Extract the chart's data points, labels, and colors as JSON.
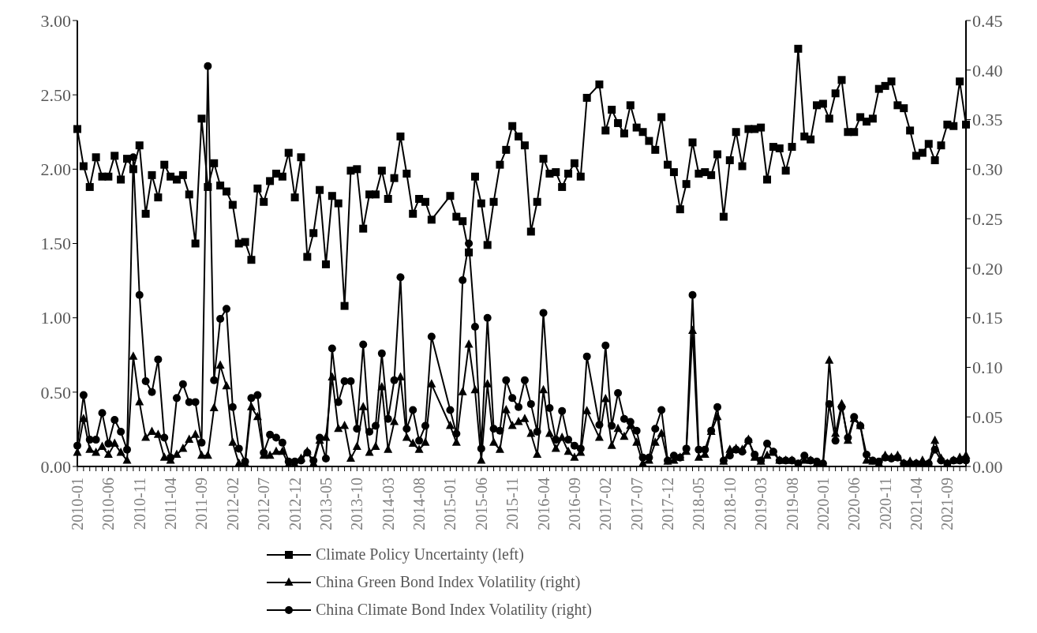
{
  "chart_data": {
    "type": "line",
    "categories": [
      "2010-01",
      null,
      null,
      null,
      null,
      "2010-06",
      null,
      null,
      null,
      null,
      "2010-11",
      null,
      null,
      null,
      null,
      "2011-04",
      null,
      null,
      null,
      null,
      "2011-09",
      null,
      null,
      null,
      null,
      "2012-02",
      null,
      null,
      null,
      null,
      "2012-07",
      null,
      null,
      null,
      null,
      "2012-12",
      null,
      null,
      null,
      null,
      "2013-05",
      null,
      null,
      null,
      null,
      "2013-10",
      null,
      null,
      null,
      null,
      "2014-03",
      null,
      null,
      null,
      null,
      "2014-08",
      null,
      null,
      null,
      null,
      "2015-01",
      null,
      null,
      null,
      null,
      "2015-06",
      null,
      null,
      null,
      null,
      "2015-11",
      null,
      null,
      null,
      null,
      "2016-04",
      null,
      null,
      null,
      null,
      "2016-09",
      null,
      null,
      null,
      null,
      "2017-02",
      null,
      null,
      null,
      null,
      "2017-07",
      null,
      null,
      null,
      null,
      "2017-12",
      null,
      null,
      null,
      null,
      "2018-05",
      null,
      null,
      null,
      null,
      "2018-10",
      null,
      null,
      null,
      null,
      "2019-03",
      null,
      null,
      null,
      null,
      "2019-08",
      null,
      null,
      null,
      null,
      "2020-01",
      null,
      null,
      null,
      null,
      "2020-06",
      null,
      null,
      null,
      null,
      "2020-11",
      null,
      null,
      null,
      null,
      "2021-04",
      null,
      null,
      null,
      null,
      "2021-09",
      null,
      null,
      null
    ],
    "series": [
      {
        "name": "Climate Policy Uncertainty (left)",
        "color": "#000000",
        "marker": "square",
        "values": [
          2.27,
          2.02,
          1.88,
          2.08,
          1.95,
          1.95,
          2.09,
          1.93,
          2.07,
          2.0,
          2.16,
          1.7,
          1.96,
          1.81,
          2.03,
          1.95,
          1.93,
          1.96,
          1.83,
          1.5,
          2.34,
          1.88,
          2.04,
          1.89,
          1.85,
          1.76,
          1.5,
          1.51,
          1.39,
          1.87,
          1.78,
          1.92,
          1.97,
          1.95,
          2.11,
          1.81,
          2.08,
          1.41,
          1.57,
          1.86,
          1.36,
          1.82,
          1.77,
          1.08,
          1.99,
          2.0,
          1.6,
          1.83,
          1.83,
          1.99,
          1.8,
          1.94,
          2.22,
          1.97,
          1.7,
          1.8,
          1.78,
          1.66,
          null,
          null,
          1.82,
          1.68,
          1.65,
          1.44,
          1.95,
          1.77,
          1.49,
          1.78,
          2.03,
          2.13,
          2.29,
          2.22,
          2.16,
          1.58,
          1.78,
          2.07,
          1.97,
          1.98,
          1.88,
          1.97,
          2.04,
          1.95,
          2.48,
          null,
          2.57,
          2.26,
          2.4,
          2.31,
          2.24,
          2.43,
          2.28,
          2.25,
          2.19,
          2.13,
          2.35,
          2.03,
          1.98,
          1.73,
          1.9,
          2.18,
          1.97,
          1.98,
          1.96,
          2.1,
          1.68,
          2.06,
          2.25,
          2.02,
          2.27,
          2.27,
          2.28,
          1.93,
          2.15,
          2.14,
          1.99,
          2.15,
          2.81,
          2.22,
          2.2,
          2.43,
          2.44,
          2.34,
          2.51,
          2.6,
          2.25,
          2.25,
          2.35,
          2.32,
          2.34,
          2.54,
          2.56,
          2.59,
          2.43,
          2.41,
          2.26,
          2.09,
          2.11,
          2.17,
          2.06,
          2.16,
          2.3,
          2.29,
          2.59,
          2.3
        ]
      },
      {
        "name": "China Green Bond Index Volatility (right)",
        "color": "#000000",
        "marker": "triangle",
        "axis": "y2",
        "values": [
          0.014,
          0.048,
          0.017,
          0.014,
          0.02,
          0.012,
          0.023,
          0.014,
          0.006,
          0.111,
          0.065,
          0.029,
          0.035,
          0.032,
          0.009,
          0.006,
          0.012,
          0.018,
          0.027,
          0.032,
          0.011,
          0.011,
          0.059,
          0.102,
          0.081,
          0.024,
          0.003,
          0.003,
          0.06,
          0.05,
          0.011,
          0.011,
          0.015,
          0.015,
          0.002,
          0.002,
          0.008,
          0.015,
          0.003,
          0.026,
          0.029,
          0.09,
          0.038,
          0.041,
          0.008,
          0.02,
          0.06,
          0.014,
          0.02,
          0.08,
          0.017,
          0.045,
          0.09,
          0.029,
          0.023,
          0.017,
          0.024,
          0.083,
          null,
          null,
          0.041,
          0.024,
          0.075,
          0.123,
          0.077,
          0.006,
          0.083,
          0.024,
          0.017,
          0.057,
          0.041,
          0.045,
          0.048,
          0.033,
          0.012,
          0.077,
          0.033,
          0.018,
          0.029,
          0.015,
          0.009,
          0.014,
          0.056,
          null,
          0.029,
          0.068,
          0.021,
          0.038,
          0.03,
          0.041,
          0.024,
          0.003,
          0.006,
          0.024,
          0.033,
          0.005,
          0.006,
          0.009,
          0.015,
          0.137,
          0.009,
          0.012,
          0.035,
          0.05,
          0.005,
          0.017,
          0.018,
          0.017,
          0.027,
          0.009,
          0.005,
          0.011,
          0.014,
          0.006,
          0.006,
          0.006,
          0.002,
          0.006,
          0.006,
          0.003,
          0.003,
          0.107,
          0.033,
          0.063,
          0.026,
          0.048,
          0.041,
          0.006,
          0.005,
          0.003,
          0.011,
          0.009,
          0.011,
          0.003,
          0.005,
          0.003,
          0.006,
          0.003,
          0.026,
          0.008,
          0.003,
          0.006,
          0.009,
          0.011
        ]
      },
      {
        "name": "China Climate Bond Index Volatility (right)",
        "color": "#000000",
        "marker": "circle",
        "axis": "y2",
        "values": [
          0.021,
          0.072,
          0.027,
          0.027,
          0.054,
          0.023,
          0.047,
          0.035,
          0.017,
          0.312,
          0.173,
          0.086,
          0.075,
          0.108,
          0.029,
          0.009,
          0.069,
          0.083,
          0.065,
          0.065,
          0.024,
          0.404,
          0.087,
          0.149,
          0.159,
          0.06,
          0.018,
          0.005,
          0.069,
          0.072,
          0.014,
          0.032,
          0.029,
          0.024,
          0.005,
          0.005,
          0.006,
          0.014,
          0.006,
          0.029,
          0.008,
          0.119,
          0.065,
          0.086,
          0.086,
          0.038,
          0.123,
          0.035,
          0.041,
          0.114,
          0.048,
          0.087,
          0.191,
          0.038,
          0.057,
          0.026,
          0.041,
          0.131,
          null,
          null,
          0.057,
          0.033,
          0.188,
          0.225,
          0.141,
          0.018,
          0.15,
          0.038,
          0.036,
          0.087,
          0.069,
          0.06,
          0.087,
          0.063,
          0.035,
          0.155,
          0.059,
          0.027,
          0.056,
          0.027,
          0.021,
          0.018,
          0.111,
          null,
          0.042,
          0.122,
          0.041,
          0.074,
          0.048,
          0.045,
          0.036,
          0.009,
          0.009,
          0.038,
          0.057,
          0.006,
          0.011,
          0.009,
          0.018,
          0.173,
          0.017,
          0.017,
          0.036,
          0.06,
          0.006,
          0.011,
          0.017,
          0.015,
          0.026,
          0.012,
          0.006,
          0.023,
          0.015,
          0.006,
          0.006,
          0.006,
          0.003,
          0.011,
          0.006,
          0.005,
          0.003,
          0.063,
          0.026,
          0.06,
          0.029,
          0.05,
          0.041,
          0.012,
          0.006,
          0.005,
          0.009,
          0.008,
          0.009,
          0.003,
          0.003,
          0.003,
          0.003,
          0.003,
          0.017,
          0.006,
          0.003,
          0.006,
          0.006,
          0.006
        ]
      }
    ],
    "ylim": [
      0,
      3
    ],
    "yticks": [
      {
        "value": 0,
        "label": "0.00"
      },
      {
        "value": 0.5,
        "label": "0.50"
      },
      {
        "value": 1,
        "label": "1.00"
      },
      {
        "value": 1.5,
        "label": "1.50"
      },
      {
        "value": 2,
        "label": "2.00"
      },
      {
        "value": 2.5,
        "label": "2.50"
      },
      {
        "value": 3,
        "label": "3.00"
      }
    ],
    "y2lim": [
      0,
      0.45
    ],
    "y2ticks": [
      {
        "value": 0,
        "label": "0.00"
      },
      {
        "value": 0.05,
        "label": "0.05"
      },
      {
        "value": 0.1,
        "label": "0.10"
      },
      {
        "value": 0.15,
        "label": "0.15"
      },
      {
        "value": 0.2,
        "label": "0.20"
      },
      {
        "value": 0.25,
        "label": "0.25"
      },
      {
        "value": 0.3,
        "label": "0.30"
      },
      {
        "value": 0.35,
        "label": "0.35"
      },
      {
        "value": 0.4,
        "label": "0.40"
      },
      0.45
    ],
    "grid": false,
    "legend": "bottom"
  }
}
